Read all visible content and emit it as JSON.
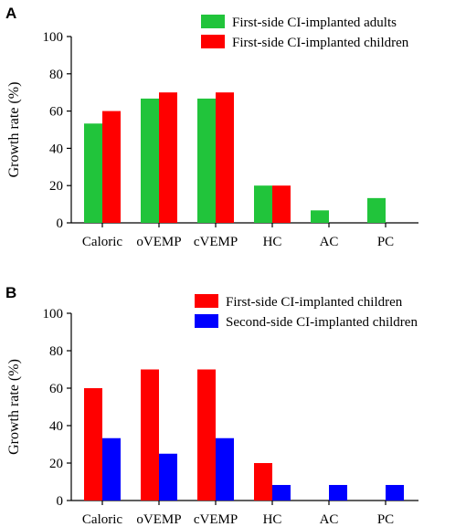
{
  "chart_data": [
    {
      "panel": "A",
      "type": "bar",
      "title": "",
      "xlabel": "",
      "ylabel": "Growth rate (%)",
      "ylim": [
        0,
        100
      ],
      "yticks": [
        0,
        20,
        40,
        60,
        80,
        100
      ],
      "categories": [
        "Caloric",
        "oVEMP",
        "cVEMP",
        "HC",
        "AC",
        "PC"
      ],
      "legend_position": "top-right",
      "grid": false,
      "series": [
        {
          "name": "First-side CI-implanted adults",
          "color": "#21c43b",
          "values": [
            53.3,
            66.7,
            66.7,
            20,
            6.7,
            13.3
          ]
        },
        {
          "name": "First-side CI-implanted children",
          "color": "#ff0000",
          "values": [
            60,
            70,
            70,
            20,
            0,
            0
          ]
        }
      ]
    },
    {
      "panel": "B",
      "type": "bar",
      "title": "",
      "xlabel": "",
      "ylabel": "Growth rate (%)",
      "ylim": [
        0,
        100
      ],
      "yticks": [
        0,
        20,
        40,
        60,
        80,
        100
      ],
      "categories": [
        "Caloric",
        "oVEMP",
        "cVEMP",
        "HC",
        "AC",
        "PC"
      ],
      "legend_position": "top-right",
      "grid": false,
      "series": [
        {
          "name": "First-side CI-implanted children",
          "color": "#ff0000",
          "values": [
            60,
            70,
            70,
            20,
            0,
            0
          ]
        },
        {
          "name": "Second-side CI-implanted children",
          "color": "#0000ff",
          "values": [
            33.3,
            25,
            33.3,
            8.3,
            8.3,
            8.3
          ]
        }
      ]
    }
  ]
}
